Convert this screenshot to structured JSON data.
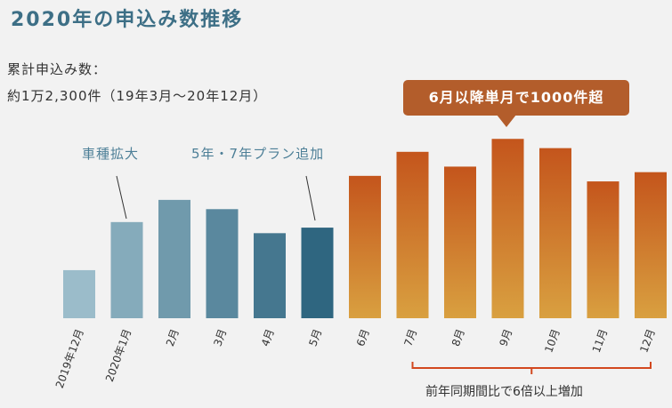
{
  "title": "2020年の申込み数推移",
  "summary": {
    "line1": "累計申込み数：",
    "line2": "約1万2,300件（19年3月〜20年12月）"
  },
  "callout": "6月以降単月で1000件超",
  "annotations": {
    "vehicle_expansion": "車種拡大",
    "plan_added": "5年・7年プラン追加"
  },
  "bracket_note": "前年同期間比で6倍以上増加",
  "colors": {
    "blue_start": "#9bbcca",
    "blue_end": "#2f6680",
    "orange_top": "#c4551c",
    "orange_bottom": "#d9a040",
    "title": "#3d6f86",
    "callout_bg": "#b35d2b",
    "bracket": "#d2481f"
  },
  "chart_data": {
    "type": "bar",
    "categories": [
      "2019年12月",
      "2020年1月",
      "2月",
      "3月",
      "4月",
      "5月",
      "6月",
      "7月",
      "8月",
      "9月",
      "10月",
      "11月",
      "12月"
    ],
    "values": [
      26,
      52,
      64,
      59,
      46,
      49,
      77,
      90,
      82,
      97,
      92,
      74,
      79
    ],
    "ylim": [
      0,
      100
    ],
    "y_axis_shown": false,
    "grid": false
  }
}
